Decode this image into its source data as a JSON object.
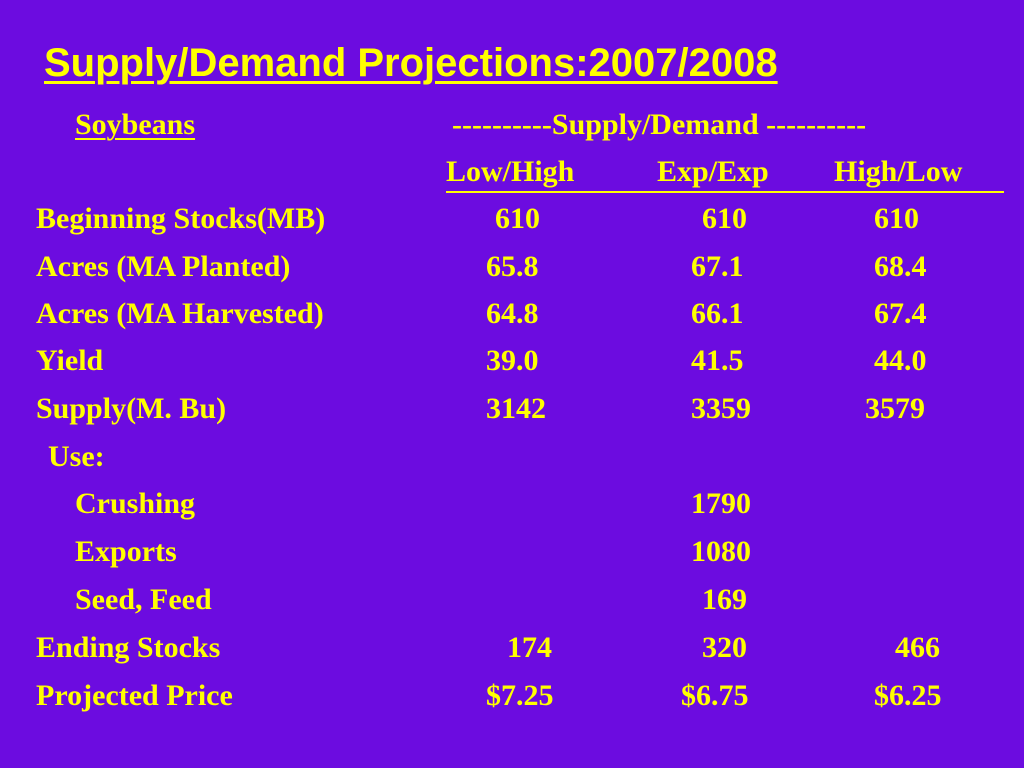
{
  "title": "Supply/Demand Projections:2007/2008",
  "commodity": "Soybeans",
  "group_header": "----------Supply/Demand ----------",
  "columns": [
    "Low/High",
    "Exp/Exp",
    "High/Low"
  ],
  "rows": {
    "beginning_stocks": {
      "label": "Beginning Stocks(MB)",
      "values": [
        "610",
        "610",
        "610"
      ]
    },
    "acres_planted": {
      "label": "Acres (MA Planted)",
      "values": [
        "65.8",
        "67.1",
        "68.4"
      ]
    },
    "acres_harvested": {
      "label": "Acres (MA Harvested)",
      "values": [
        "64.8",
        "66.1",
        "67.4"
      ]
    },
    "yield": {
      "label": "Yield",
      "values": [
        "39.0",
        "41.5",
        "44.0"
      ]
    },
    "supply": {
      "label": "Supply(M. Bu)",
      "values": [
        "3142",
        "3359",
        "3579"
      ]
    },
    "use_header": {
      "label": "Use:"
    },
    "crushing": {
      "label": "Crushing",
      "value": "1790"
    },
    "exports": {
      "label": "Exports",
      "value": "1080"
    },
    "seed_feed": {
      "label": "Seed, Feed",
      "value": "169"
    },
    "ending_stocks": {
      "label": "Ending Stocks",
      "values": [
        "174",
        "320",
        "466"
      ]
    },
    "projected_price": {
      "label": "Projected Price",
      "values": [
        "$7.25",
        "$6.75",
        "$6.25"
      ]
    }
  },
  "colors": {
    "background": "#6c0ce0",
    "text": "#ffff00"
  }
}
